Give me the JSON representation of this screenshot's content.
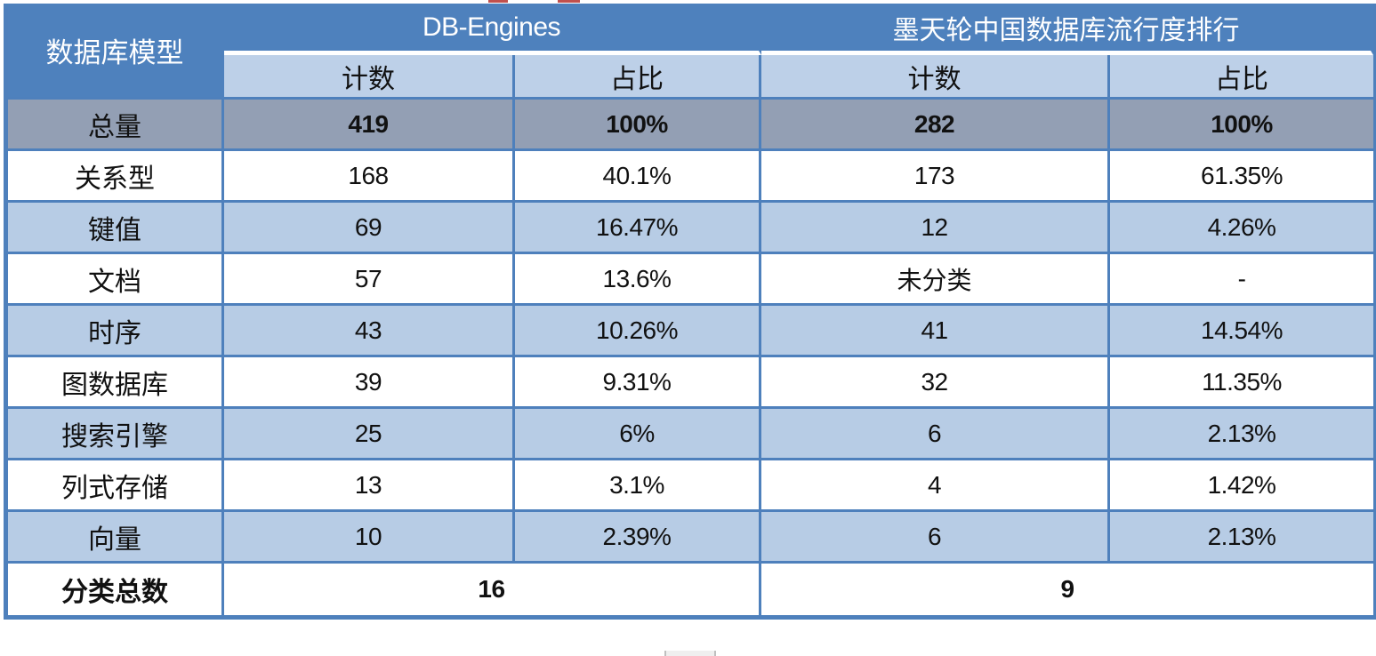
{
  "colors": {
    "header_blue": "#4E81BD",
    "border_blue": "#4E80BC",
    "subheader_blue": "#BDD0E8",
    "row_light_blue": "#B7CCE5",
    "total_row_gray": "#939FB4",
    "header_text": "#FFFFFF",
    "body_text": "#111111",
    "artifact_red": "#C0504D",
    "artifact_gray": "#BFBFBF"
  },
  "table": {
    "corner_header": "数据库模型",
    "groups": [
      {
        "label": "DB-Engines",
        "subheaders": [
          "计数",
          "占比"
        ]
      },
      {
        "label": "墨天轮中国数据库流行度排行",
        "subheaders": [
          "计数",
          "占比"
        ]
      }
    ],
    "rows": [
      {
        "label": "总量",
        "values": [
          "419",
          "100%",
          "282",
          "100%"
        ],
        "variant": "total"
      },
      {
        "label": "关系型",
        "values": [
          "168",
          "40.1%",
          "173",
          "61.35%"
        ],
        "variant": "white"
      },
      {
        "label": "键值",
        "values": [
          "69",
          "16.47%",
          "12",
          "4.26%"
        ],
        "variant": "blue"
      },
      {
        "label": "文档",
        "values": [
          "57",
          "13.6%",
          "未分类",
          "-"
        ],
        "variant": "white"
      },
      {
        "label": "时序",
        "values": [
          "43",
          "10.26%",
          "41",
          "14.54%"
        ],
        "variant": "blue"
      },
      {
        "label": "图数据库",
        "values": [
          "39",
          "9.31%",
          "32",
          "11.35%"
        ],
        "variant": "white"
      },
      {
        "label": "搜索引擎",
        "values": [
          "25",
          "6%",
          "6",
          "2.13%"
        ],
        "variant": "blue"
      },
      {
        "label": "列式存储",
        "values": [
          "13",
          "3.1%",
          "4",
          "1.42%"
        ],
        "variant": "white"
      },
      {
        "label": "向量",
        "values": [
          "10",
          "2.39%",
          "6",
          "2.13%"
        ],
        "variant": "blue"
      }
    ],
    "footer": {
      "label": "分类总数",
      "values": [
        "16",
        "9"
      ]
    }
  },
  "chart_data": {
    "type": "table",
    "columns": [
      "数据库模型",
      "DB-Engines 计数",
      "DB-Engines 占比",
      "墨天轮中国数据库流行度排行 计数",
      "墨天轮中国数据库流行度排行 占比"
    ],
    "rows": [
      [
        "总量",
        "419",
        "100%",
        "282",
        "100%"
      ],
      [
        "关系型",
        "168",
        "40.1%",
        "173",
        "61.35%"
      ],
      [
        "键值",
        "69",
        "16.47%",
        "12",
        "4.26%"
      ],
      [
        "文档",
        "57",
        "13.6%",
        "未分类",
        "-"
      ],
      [
        "时序",
        "43",
        "10.26%",
        "41",
        "14.54%"
      ],
      [
        "图数据库",
        "39",
        "9.31%",
        "32",
        "11.35%"
      ],
      [
        "搜索引擎",
        "25",
        "6%",
        "6",
        "2.13%"
      ],
      [
        "列式存储",
        "13",
        "3.1%",
        "4",
        "1.42%"
      ],
      [
        "向量",
        "10",
        "2.39%",
        "6",
        "2.13%"
      ],
      [
        "分类总数",
        "16",
        "",
        "9",
        ""
      ]
    ]
  }
}
